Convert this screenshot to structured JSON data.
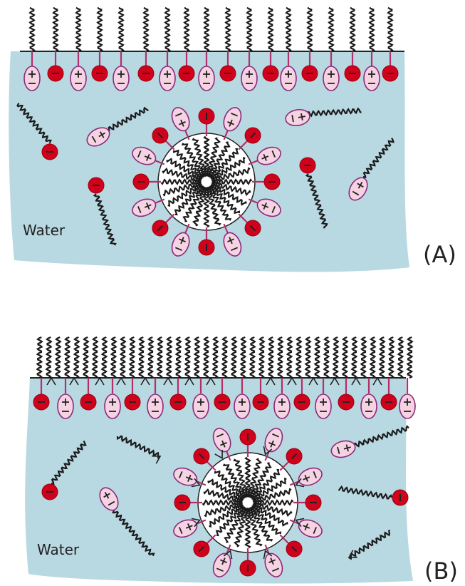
{
  "panels": [
    {
      "water_label": "Water",
      "label": "(A)"
    },
    {
      "water_label": "Water",
      "label": "(B)"
    }
  ]
}
